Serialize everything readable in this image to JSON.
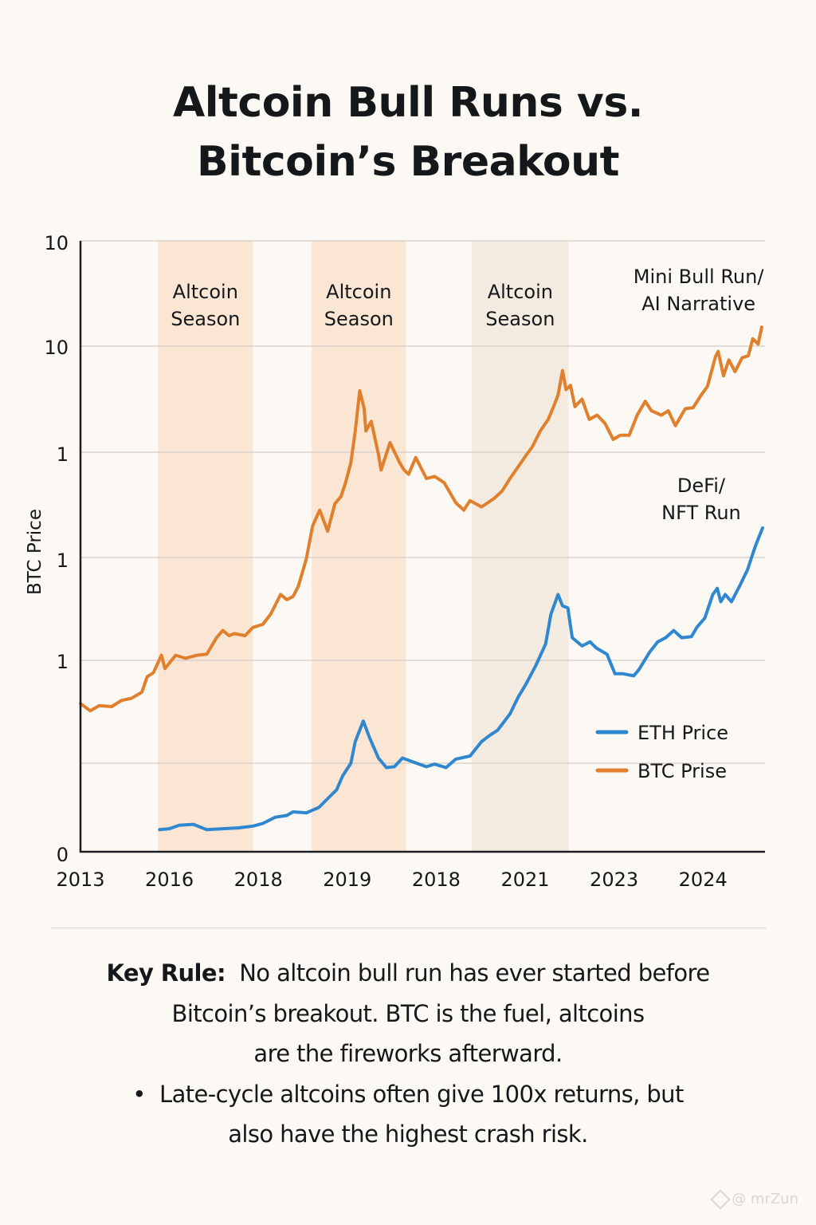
{
  "title_lines": [
    "Altcoin Bull Runs vs.",
    "Bitcoin’s Breakout"
  ],
  "chart_data": {
    "type": "line",
    "title": "Altcoin Bull Runs vs. Bitcoin’s Breakout",
    "xlabel": "",
    "ylabel": "BTC Price",
    "x_unit_note": "x values are positions along the time axis in tick-index units (0 = first tick '2013', 7 = last tick '2024')",
    "y_unit_note": "y values are positions on the printed y-axis in tick-index units (0 = bottom tick '0', 6 = top tick '10'); axis is log-style with inconsistent labels",
    "x_ticks": [
      "2013",
      "2016",
      "2018",
      "2019",
      "2018",
      "2021",
      "2023",
      "2024"
    ],
    "y_ticks": [
      "0",
      "",
      "1",
      "1",
      "1",
      "10",
      "10"
    ],
    "xlim": [
      0,
      7.7
    ],
    "ylim": [
      0,
      6
    ],
    "grid": true,
    "legend_position": "right-middle",
    "series": [
      {
        "name": "ETH Price",
        "color": "#2f87d0",
        "points": [
          [
            0.89,
            0.25
          ],
          [
            1.0,
            0.26
          ],
          [
            1.11,
            0.3
          ],
          [
            1.27,
            0.31
          ],
          [
            1.42,
            0.25
          ],
          [
            1.6,
            0.26
          ],
          [
            1.78,
            0.27
          ],
          [
            1.94,
            0.29
          ],
          [
            2.05,
            0.32
          ],
          [
            2.19,
            0.39
          ],
          [
            2.32,
            0.41
          ],
          [
            2.39,
            0.45
          ],
          [
            2.54,
            0.44
          ],
          [
            2.68,
            0.5
          ],
          [
            2.77,
            0.59
          ],
          [
            2.88,
            0.7
          ],
          [
            2.95,
            0.86
          ],
          [
            3.04,
            1.0
          ],
          [
            3.09,
            1.21
          ],
          [
            3.18,
            1.41
          ],
          [
            3.25,
            1.25
          ],
          [
            3.35,
            1.05
          ],
          [
            3.44,
            0.95
          ],
          [
            3.53,
            0.96
          ],
          [
            3.62,
            1.05
          ],
          [
            3.75,
            1.01
          ],
          [
            3.89,
            0.96
          ],
          [
            3.98,
            0.99
          ],
          [
            4.11,
            0.95
          ],
          [
            4.22,
            1.04
          ],
          [
            4.38,
            1.07
          ],
          [
            4.51,
            1.21
          ],
          [
            4.6,
            1.27
          ],
          [
            4.69,
            1.32
          ],
          [
            4.83,
            1.48
          ],
          [
            4.92,
            1.64
          ],
          [
            5.01,
            1.77
          ],
          [
            5.12,
            1.95
          ],
          [
            5.23,
            2.16
          ],
          [
            5.29,
            2.45
          ],
          [
            5.37,
            2.64
          ],
          [
            5.42,
            2.53
          ],
          [
            5.48,
            2.51
          ],
          [
            5.53,
            2.22
          ],
          [
            5.64,
            2.14
          ],
          [
            5.73,
            2.18
          ],
          [
            5.8,
            2.12
          ],
          [
            5.92,
            2.06
          ],
          [
            6.01,
            1.87
          ],
          [
            6.1,
            1.87
          ],
          [
            6.22,
            1.85
          ],
          [
            6.28,
            1.91
          ],
          [
            6.4,
            2.08
          ],
          [
            6.49,
            2.18
          ],
          [
            6.58,
            2.22
          ],
          [
            6.67,
            2.29
          ],
          [
            6.76,
            2.22
          ],
          [
            6.87,
            2.23
          ],
          [
            6.93,
            2.32
          ],
          [
            7.02,
            2.41
          ],
          [
            7.11,
            2.64
          ],
          [
            7.16,
            2.7
          ],
          [
            7.2,
            2.57
          ],
          [
            7.25,
            2.64
          ],
          [
            7.32,
            2.57
          ],
          [
            7.41,
            2.72
          ],
          [
            7.5,
            2.88
          ],
          [
            7.59,
            3.11
          ],
          [
            7.67,
            3.28
          ]
        ]
      },
      {
        "name": "BTC Prise",
        "color": "#e07f2c",
        "points": [
          [
            0,
            1.58
          ],
          [
            0.11,
            1.51
          ],
          [
            0.21,
            1.56
          ],
          [
            0.35,
            1.55
          ],
          [
            0.46,
            1.61
          ],
          [
            0.57,
            1.63
          ],
          [
            0.69,
            1.69
          ],
          [
            0.75,
            1.84
          ],
          [
            0.82,
            1.88
          ],
          [
            0.91,
            2.05
          ],
          [
            0.95,
            1.92
          ],
          [
            1.07,
            2.05
          ],
          [
            1.18,
            2.02
          ],
          [
            1.31,
            2.05
          ],
          [
            1.42,
            2.06
          ],
          [
            1.53,
            2.22
          ],
          [
            1.6,
            2.29
          ],
          [
            1.67,
            2.24
          ],
          [
            1.73,
            2.26
          ],
          [
            1.85,
            2.24
          ],
          [
            1.94,
            2.32
          ],
          [
            2.05,
            2.35
          ],
          [
            2.14,
            2.45
          ],
          [
            2.25,
            2.64
          ],
          [
            2.32,
            2.59
          ],
          [
            2.39,
            2.62
          ],
          [
            2.45,
            2.72
          ],
          [
            2.54,
            2.99
          ],
          [
            2.61,
            3.3
          ],
          [
            2.69,
            3.45
          ],
          [
            2.78,
            3.25
          ],
          [
            2.86,
            3.51
          ],
          [
            2.93,
            3.58
          ],
          [
            2.98,
            3.71
          ],
          [
            3.04,
            3.9
          ],
          [
            3.09,
            4.2
          ],
          [
            3.14,
            4.58
          ],
          [
            3.19,
            4.41
          ],
          [
            3.21,
            4.2
          ],
          [
            3.27,
            4.29
          ],
          [
            3.35,
            3.98
          ],
          [
            3.38,
            3.83
          ],
          [
            3.48,
            4.09
          ],
          [
            3.59,
            3.9
          ],
          [
            3.64,
            3.83
          ],
          [
            3.69,
            3.79
          ],
          [
            3.77,
            3.95
          ],
          [
            3.89,
            3.75
          ],
          [
            3.98,
            3.77
          ],
          [
            4.02,
            3.75
          ],
          [
            4.09,
            3.71
          ],
          [
            4.22,
            3.52
          ],
          [
            4.31,
            3.45
          ],
          [
            4.38,
            3.54
          ],
          [
            4.51,
            3.48
          ],
          [
            4.65,
            3.56
          ],
          [
            4.74,
            3.63
          ],
          [
            4.83,
            3.75
          ],
          [
            4.92,
            3.86
          ],
          [
            5.01,
            3.97
          ],
          [
            5.08,
            4.05
          ],
          [
            5.17,
            4.2
          ],
          [
            5.26,
            4.31
          ],
          [
            5.32,
            4.43
          ],
          [
            5.37,
            4.54
          ],
          [
            5.42,
            4.77
          ],
          [
            5.46,
            4.59
          ],
          [
            5.51,
            4.63
          ],
          [
            5.56,
            4.43
          ],
          [
            5.64,
            4.5
          ],
          [
            5.72,
            4.31
          ],
          [
            5.81,
            4.35
          ],
          [
            5.9,
            4.27
          ],
          [
            5.99,
            4.12
          ],
          [
            6.07,
            4.16
          ],
          [
            6.17,
            4.16
          ],
          [
            6.26,
            4.35
          ],
          [
            6.35,
            4.48
          ],
          [
            6.42,
            4.39
          ],
          [
            6.53,
            4.35
          ],
          [
            6.61,
            4.39
          ],
          [
            6.69,
            4.25
          ],
          [
            6.8,
            4.41
          ],
          [
            6.89,
            4.42
          ],
          [
            6.98,
            4.54
          ],
          [
            7.05,
            4.62
          ],
          [
            7.14,
            4.9
          ],
          [
            7.17,
            4.95
          ],
          [
            7.23,
            4.72
          ],
          [
            7.29,
            4.87
          ],
          [
            7.36,
            4.76
          ],
          [
            7.44,
            4.89
          ],
          [
            7.51,
            4.91
          ],
          [
            7.56,
            5.07
          ],
          [
            7.62,
            5.02
          ],
          [
            7.66,
            5.18
          ]
        ]
      }
    ],
    "bands": [
      {
        "label": [
          "Altcoin",
          "Season"
        ],
        "x_start": 0.87,
        "x_end": 1.94,
        "color": "#fbe6d4"
      },
      {
        "label": [
          "Altcoin",
          "Season"
        ],
        "x_start": 2.6,
        "x_end": 3.66,
        "color": "#fbe6d4"
      },
      {
        "label": [
          "Altcoin",
          "Season"
        ],
        "x_start": 4.4,
        "x_end": 5.49,
        "color": "#f4ebe0"
      }
    ],
    "annotations": [
      {
        "lines": [
          "Mini Bull Run/",
          "AI Narrative"
        ],
        "x": 6.95,
        "y": 5.6
      },
      {
        "lines": [
          "DeFi/",
          "NFT Run"
        ],
        "x": 6.98,
        "y": 3.62
      }
    ]
  },
  "notes": {
    "key_label": "Key Rule:",
    "key_text_1": "No altcoin bull run has ever started before",
    "key_text_2": "Bitcoin’s breakout. BTC is the fuel, altcoins",
    "key_text_3": "are the fireworks afterward.",
    "bullet": "•",
    "bullet_text_1": "Late-cycle altcoins often give 100x returns, but",
    "bullet_text_2": "also have the highest crash risk."
  },
  "watermark": "@ mrZun"
}
